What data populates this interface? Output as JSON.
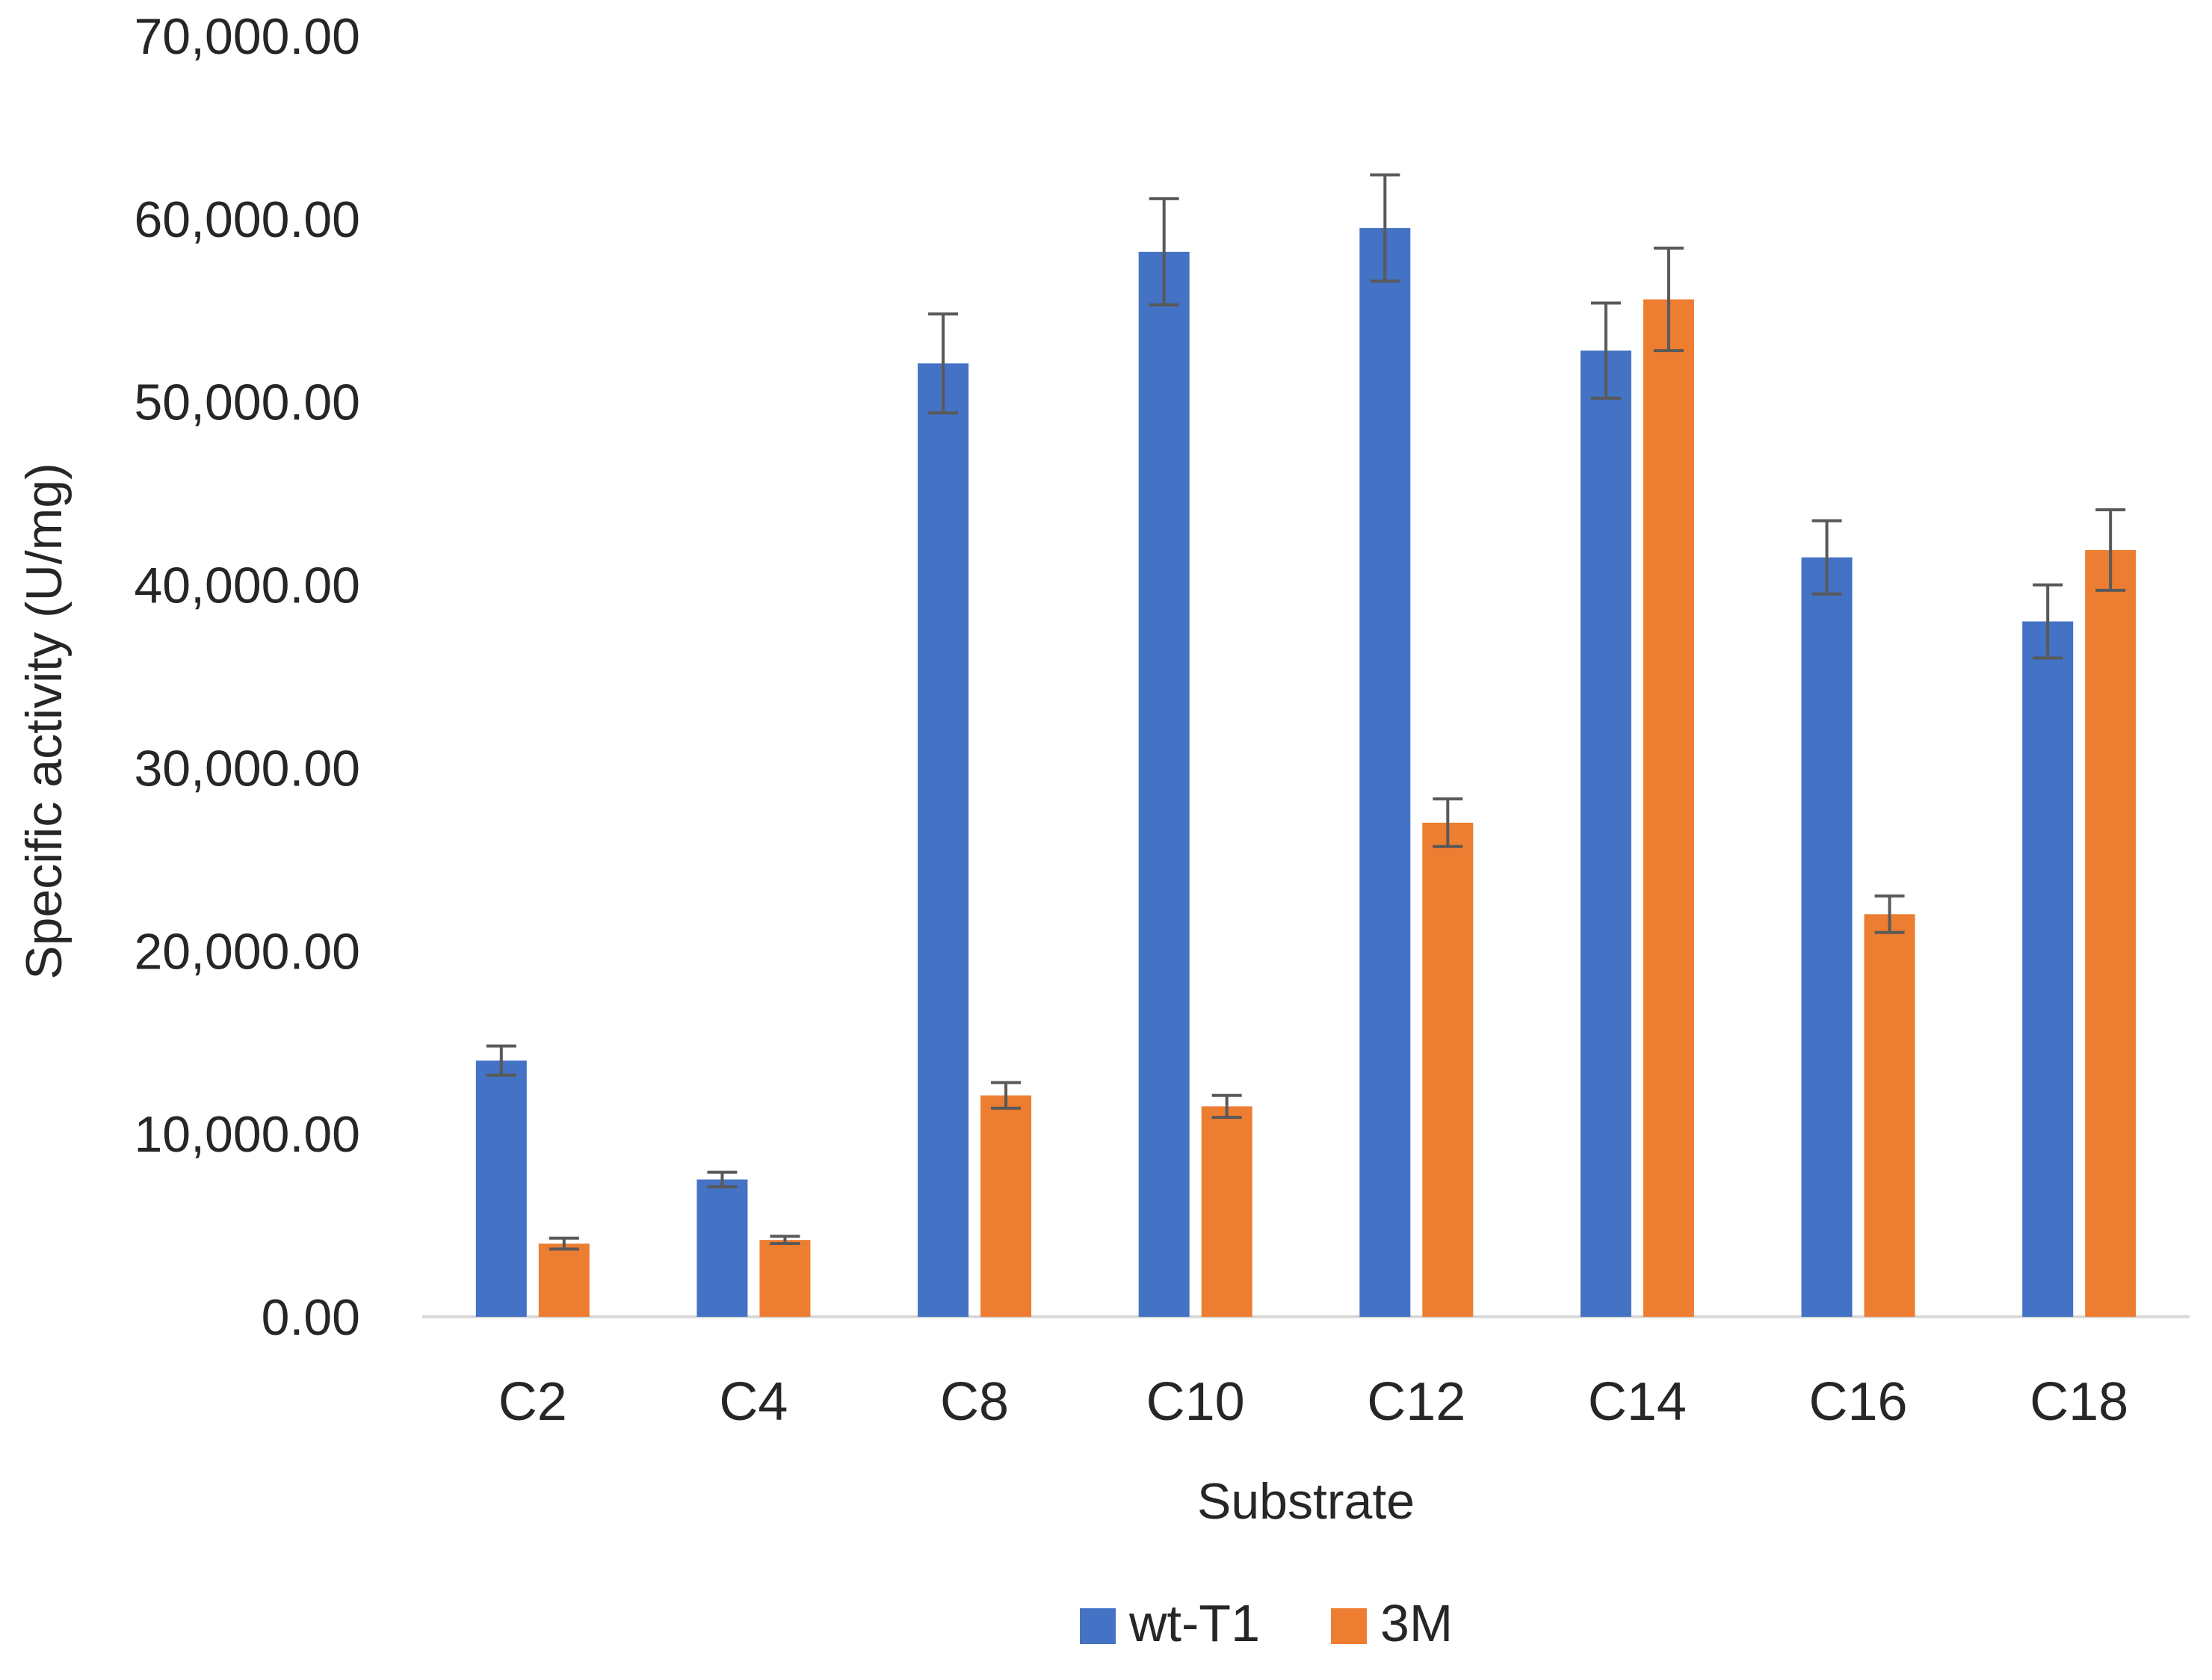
{
  "chart_data": {
    "type": "bar",
    "title": "",
    "xlabel": "Substrate",
    "ylabel": "Specific activity (U/mg)",
    "ylim": [
      0,
      70000
    ],
    "yticks": [
      0,
      10000,
      20000,
      30000,
      40000,
      50000,
      60000,
      70000
    ],
    "ytick_labels": [
      "0.00",
      "10,000.00",
      "20,000.00",
      "30,000.00",
      "40,000.00",
      "50,000.00",
      "60,000.00",
      "70,000.00"
    ],
    "categories": [
      "C2",
      "C4",
      "C8",
      "C10",
      "C12",
      "C14",
      "C16",
      "C18"
    ],
    "series": [
      {
        "name": "wt-T1",
        "color": "#4472c4",
        "values": [
          14000,
          7500,
          52100,
          58200,
          59500,
          52800,
          41500,
          38000
        ],
        "errors": [
          800,
          400,
          2700,
          2900,
          2900,
          2600,
          2000,
          2000
        ]
      },
      {
        "name": "3M",
        "color": "#ed7d31",
        "values": [
          4000,
          4200,
          12100,
          11500,
          27000,
          55600,
          22000,
          41900
        ],
        "errors": [
          300,
          200,
          700,
          600,
          1300,
          2800,
          1000,
          2200
        ]
      }
    ],
    "grid": false,
    "legend_position": "bottom-center",
    "colors": {
      "axis": "#d9d9d9",
      "errorbar": "#595959",
      "text": "#262626"
    }
  }
}
